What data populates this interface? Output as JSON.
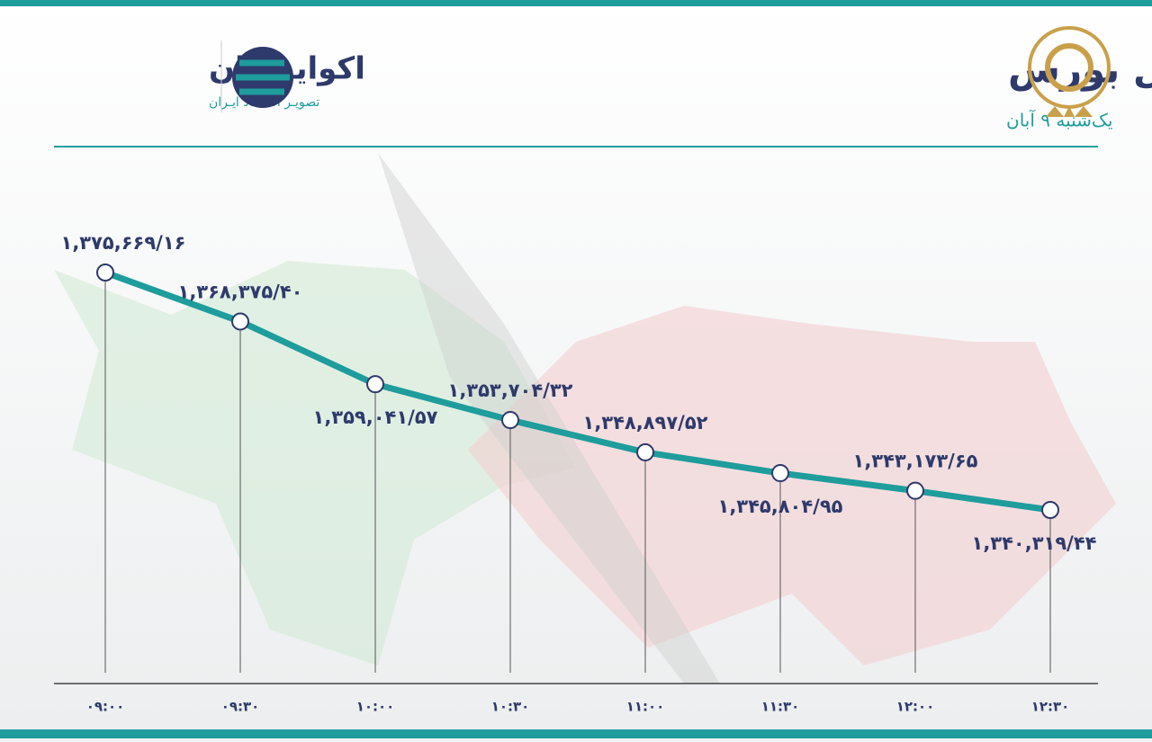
{
  "header": {
    "title": "روند شاخص کل بورس",
    "subtitle": "یک‌شنبه ۹ آبان",
    "brand": "اکوایـــران",
    "brand_tagline": "تصویـر اقتصـاد ایـران"
  },
  "chart_data": {
    "type": "line",
    "categories": [
      "۰۹:۰۰",
      "۰۹:۳۰",
      "۱۰:۰۰",
      "۱۰:۳۰",
      "۱۱:۰۰",
      "۱۱:۳۰",
      "۱۲:۰۰",
      "۱۲:۳۰"
    ],
    "values": [
      1375669.16,
      1368375.4,
      1359041.57,
      1353704.32,
      1348897.52,
      1345804.95,
      1343173.65,
      1340319.44
    ],
    "value_labels": [
      "۱,۳۷۵,۶۶۹/۱۶",
      "۱,۳۶۸,۳۷۵/۴۰",
      "۱,۳۵۹,۰۴۱/۵۷",
      "۱,۳۵۳,۷۰۴/۳۲",
      "۱,۳۴۸,۸۹۷/۵۲",
      "۱,۳۴۵,۸۰۴/۹۵",
      "۱,۳۴۳,۱۷۳/۶۵",
      "۱,۳۴۰,۳۱۹/۴۴"
    ],
    "color": "#1f9c9c"
  }
}
